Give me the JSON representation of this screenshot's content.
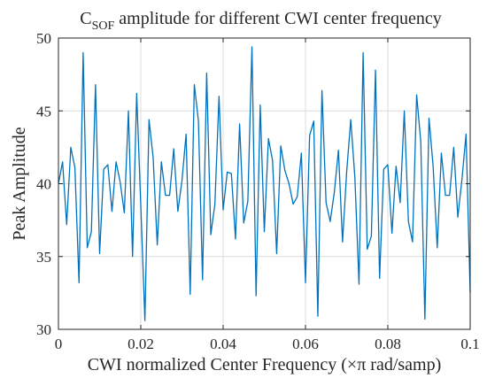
{
  "chart_data": {
    "type": "line",
    "title_main": "C",
    "title_sub": "SOF",
    "title_rest": " amplitude for different CWI center frequency",
    "xlabel": "CWI normalized Center Frequency (×π rad/samp)",
    "ylabel": "Peak Amplitude",
    "xlim": [
      0,
      0.1
    ],
    "ylim": [
      30,
      50
    ],
    "xticks": [
      0,
      0.02,
      0.04,
      0.06,
      0.08,
      0.1
    ],
    "xtick_labels": [
      "0",
      "0.02",
      "0.04",
      "0.06",
      "0.08",
      "0.1"
    ],
    "yticks": [
      30,
      35,
      40,
      45,
      50
    ],
    "ytick_labels": [
      "30",
      "35",
      "40",
      "45",
      "50"
    ],
    "grid": true,
    "line_color": "#0072BD",
    "x": [
      0,
      0.001,
      0.002,
      0.003,
      0.004,
      0.005,
      0.006,
      0.007,
      0.008,
      0.009,
      0.01,
      0.011,
      0.012,
      0.013,
      0.014,
      0.015,
      0.016,
      0.017,
      0.018,
      0.019,
      0.02,
      0.021,
      0.022,
      0.023,
      0.024,
      0.025,
      0.026,
      0.027,
      0.028,
      0.029,
      0.03,
      0.031,
      0.032,
      0.033,
      0.034,
      0.035,
      0.036,
      0.037,
      0.038,
      0.039,
      0.04,
      0.041,
      0.042,
      0.043,
      0.044,
      0.045,
      0.046,
      0.047,
      0.048,
      0.049,
      0.05,
      0.051,
      0.052,
      0.053,
      0.054,
      0.055,
      0.056,
      0.057,
      0.058,
      0.059,
      0.06,
      0.061,
      0.062,
      0.063,
      0.064,
      0.065,
      0.066,
      0.067,
      0.068,
      0.069,
      0.07,
      0.071,
      0.072,
      0.073,
      0.074,
      0.075,
      0.076,
      0.077,
      0.078,
      0.079,
      0.08,
      0.081,
      0.082,
      0.083,
      0.084,
      0.085,
      0.086,
      0.087,
      0.088,
      0.089,
      0.09,
      0.091,
      0.092,
      0.093,
      0.094,
      0.095,
      0.096,
      0.097,
      0.098,
      0.099,
      0.1
    ],
    "y": [
      40,
      41.5,
      37.2,
      42.5,
      41.1,
      33.2,
      49.0,
      35.6,
      36.7,
      46.8,
      35.2,
      41.0,
      41.3,
      38.1,
      41.5,
      40.1,
      38.0,
      45.0,
      35.0,
      46.2,
      38.5,
      30.6,
      44.4,
      41.8,
      35.8,
      41.5,
      39.2,
      39.2,
      42.4,
      38.1,
      40.2,
      43.4,
      32.4,
      46.8,
      44.3,
      33.4,
      47.6,
      36.5,
      38.6,
      46.0,
      38.2,
      40.8,
      40.7,
      36.2,
      44.1,
      37.3,
      38.8,
      49.4,
      32.3,
      45.4,
      36.7,
      43.1,
      41.6,
      35.2,
      42.6,
      40.9,
      40.0,
      38.6,
      39.1,
      42.1,
      33.2,
      43.3,
      44.3,
      30.9,
      46.4,
      38.7,
      37.4,
      39.4,
      42.3,
      36.0,
      40.8,
      44.4,
      40.4,
      33.1,
      49.0,
      35.5,
      36.4,
      47.8,
      33.5,
      41.0,
      41.3,
      36.6,
      41.2,
      38.7,
      45.0,
      37.4,
      36.0,
      46.1,
      42.9,
      30.7,
      44.5,
      41.2,
      35.6,
      42.1,
      39.2,
      39.2,
      42.5,
      37.7,
      40.3,
      43.4,
      32.5
    ]
  }
}
